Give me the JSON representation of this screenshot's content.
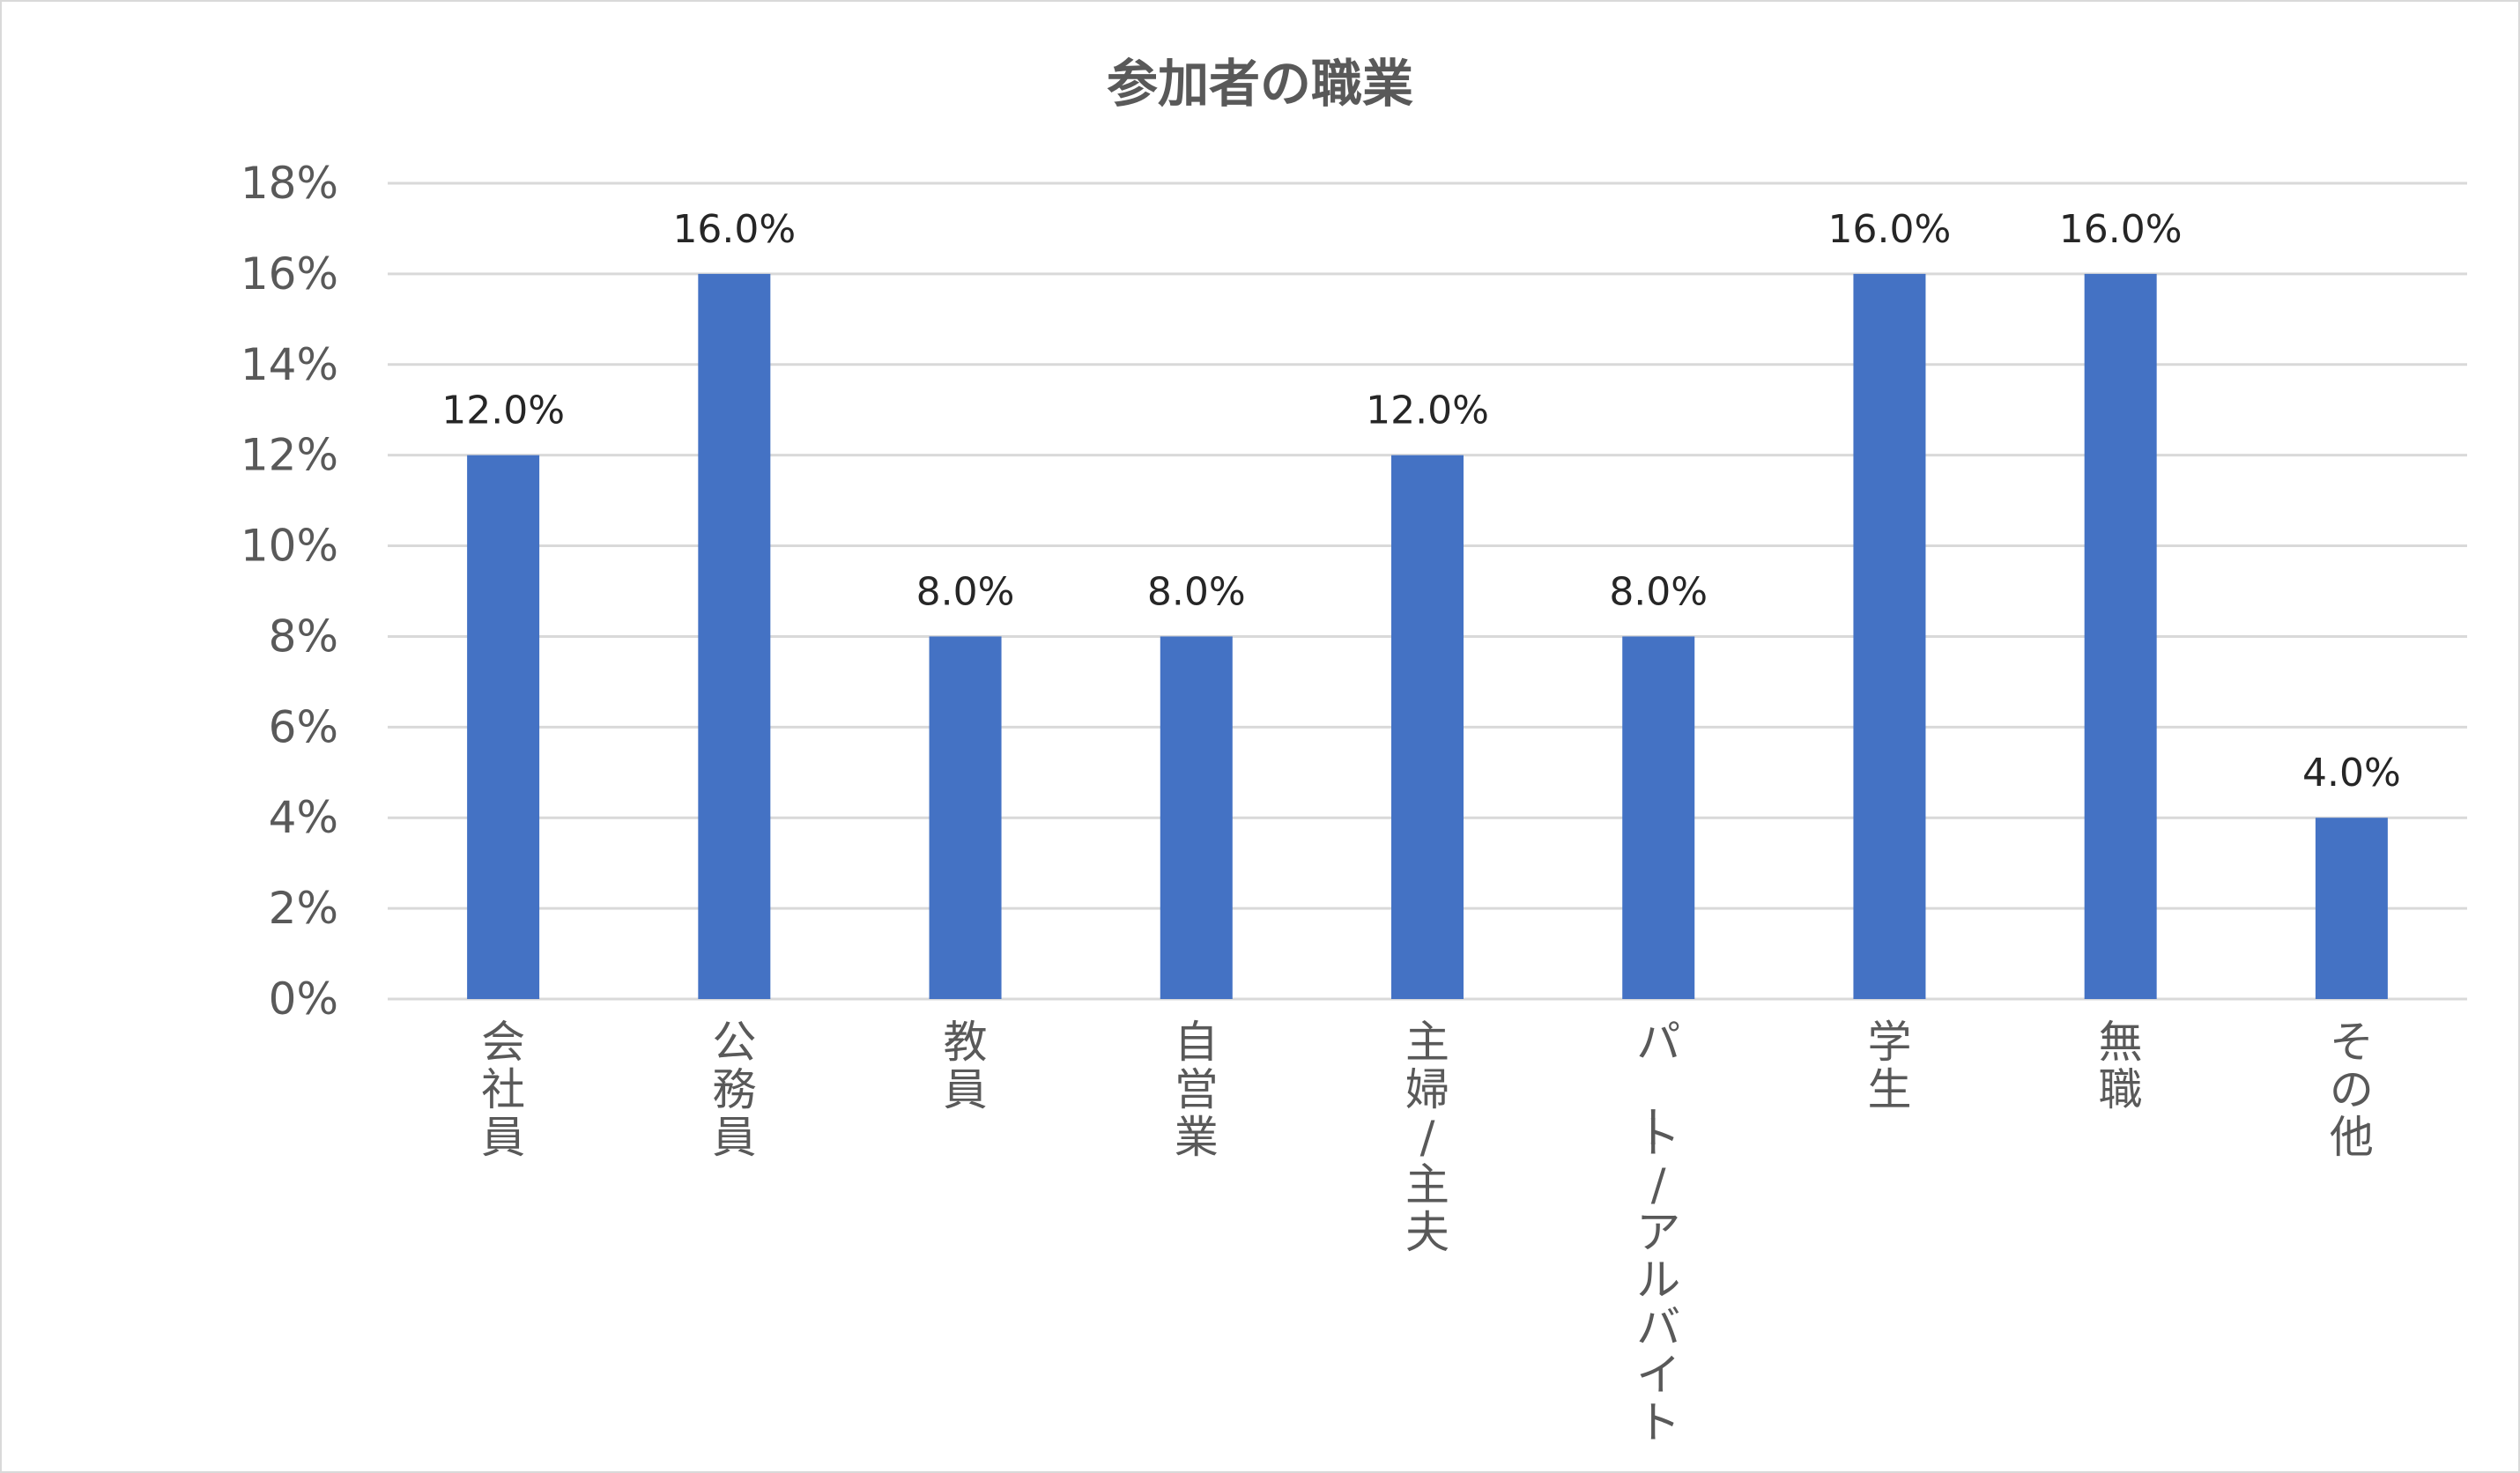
{
  "chart_data": {
    "type": "bar",
    "title": "参加者の職業",
    "xlabel": "",
    "ylabel": "",
    "categories": [
      "会社員",
      "公務員",
      "教員",
      "自営業",
      "主婦/主夫",
      "パート/アルバイト",
      "学生",
      "無職",
      "その他"
    ],
    "values": [
      12.0,
      16.0,
      8.0,
      8.0,
      12.0,
      8.0,
      16.0,
      16.0,
      4.0
    ],
    "data_labels": [
      "12.0%",
      "16.0%",
      "8.0%",
      "8.0%",
      "12.0%",
      "8.0%",
      "16.0%",
      "16.0%",
      "4.0%"
    ],
    "ylim": [
      0,
      18
    ],
    "yticks": [
      "0%",
      "2%",
      "4%",
      "6%",
      "8%",
      "10%",
      "12%",
      "14%",
      "16%",
      "18%"
    ],
    "grid": true,
    "legend": "none",
    "colors": {
      "bar": "#4472c4",
      "grid": "#d9d9d9"
    }
  }
}
